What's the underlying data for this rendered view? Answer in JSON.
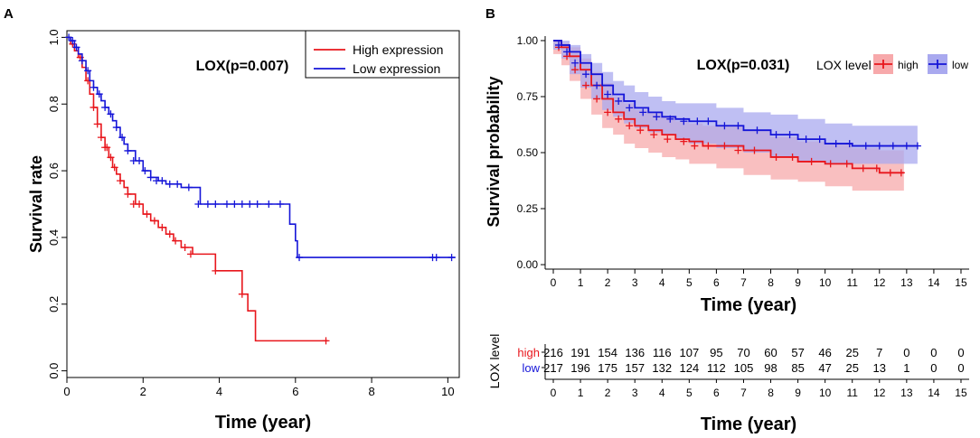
{
  "panels": {
    "a": {
      "letter": "A"
    },
    "b": {
      "letter": "B"
    }
  },
  "colors": {
    "high": "#e8161c",
    "low": "#1515d8",
    "high_band": "#f7a9ab",
    "low_band": "#a9a9ef",
    "axis": "#000000"
  },
  "chart_data": [
    {
      "panel": "A",
      "type": "line",
      "step": true,
      "xlabel": "Time (year)",
      "ylabel": "Survival rate",
      "xlim": [
        0,
        10.3
      ],
      "ylim": [
        -0.02,
        1.02
      ],
      "xticks": [
        "0",
        "2",
        "4",
        "6",
        "8",
        "10"
      ],
      "yticks": [
        "0.0",
        "0.2",
        "0.4",
        "0.6",
        "0.8",
        "1.0"
      ],
      "annotation": "LOX(p=0.007)",
      "legend": {
        "position": "top-right",
        "entries": [
          "High expression",
          "Low expression"
        ]
      },
      "series": [
        {
          "name": "High expression",
          "color": "high",
          "x": [
            0,
            0.1,
            0.2,
            0.3,
            0.4,
            0.5,
            0.6,
            0.7,
            0.8,
            0.9,
            1.0,
            1.1,
            1.2,
            1.3,
            1.4,
            1.5,
            1.6,
            1.8,
            2.0,
            2.2,
            2.4,
            2.6,
            2.8,
            3.0,
            3.3,
            3.6,
            3.9,
            4.6,
            4.75,
            4.95,
            6.85
          ],
          "y": [
            1.0,
            0.98,
            0.96,
            0.94,
            0.91,
            0.87,
            0.83,
            0.79,
            0.74,
            0.7,
            0.67,
            0.64,
            0.61,
            0.59,
            0.57,
            0.55,
            0.53,
            0.5,
            0.47,
            0.45,
            0.43,
            0.41,
            0.39,
            0.37,
            0.35,
            0.35,
            0.3,
            0.23,
            0.18,
            0.09,
            0.09
          ],
          "censor_x": [
            0.15,
            0.35,
            0.55,
            0.7,
            0.8,
            0.9,
            1.0,
            1.05,
            1.15,
            1.25,
            1.4,
            1.6,
            1.75,
            1.9,
            2.1,
            2.3,
            2.5,
            2.7,
            2.85,
            3.1,
            3.25,
            3.9,
            4.6,
            6.8
          ],
          "censor_y": [
            0.98,
            0.94,
            0.87,
            0.79,
            0.74,
            0.7,
            0.67,
            0.67,
            0.64,
            0.61,
            0.57,
            0.53,
            0.5,
            0.5,
            0.47,
            0.45,
            0.43,
            0.41,
            0.39,
            0.37,
            0.35,
            0.3,
            0.23,
            0.09
          ]
        },
        {
          "name": "Low expression",
          "color": "low",
          "x": [
            0,
            0.1,
            0.2,
            0.3,
            0.4,
            0.5,
            0.6,
            0.7,
            0.8,
            0.9,
            1.0,
            1.1,
            1.2,
            1.3,
            1.4,
            1.5,
            1.6,
            1.8,
            2.0,
            2.2,
            2.4,
            2.6,
            3.0,
            3.5,
            4.0,
            5.0,
            5.85,
            6.0,
            6.05,
            10.2
          ],
          "y": [
            1.0,
            0.99,
            0.97,
            0.95,
            0.93,
            0.9,
            0.87,
            0.85,
            0.83,
            0.81,
            0.79,
            0.77,
            0.75,
            0.73,
            0.7,
            0.68,
            0.66,
            0.63,
            0.6,
            0.58,
            0.57,
            0.56,
            0.55,
            0.5,
            0.5,
            0.5,
            0.44,
            0.39,
            0.34,
            0.34
          ],
          "censor_x": [
            0.05,
            0.15,
            0.25,
            0.4,
            0.55,
            0.7,
            0.85,
            1.0,
            1.15,
            1.3,
            1.45,
            1.6,
            1.75,
            1.9,
            2.05,
            2.2,
            2.35,
            2.5,
            2.7,
            2.9,
            3.2,
            3.45,
            3.7,
            3.9,
            4.2,
            4.4,
            4.6,
            4.8,
            5.0,
            5.3,
            5.6,
            6.1,
            9.6,
            9.7,
            10.1
          ],
          "censor_y": [
            1.0,
            0.99,
            0.97,
            0.93,
            0.9,
            0.85,
            0.83,
            0.79,
            0.77,
            0.73,
            0.7,
            0.66,
            0.63,
            0.63,
            0.6,
            0.58,
            0.57,
            0.57,
            0.56,
            0.56,
            0.55,
            0.5,
            0.5,
            0.5,
            0.5,
            0.5,
            0.5,
            0.5,
            0.5,
            0.5,
            0.5,
            0.34,
            0.34,
            0.34,
            0.34
          ]
        }
      ]
    },
    {
      "panel": "B",
      "type": "line",
      "step": true,
      "xlabel": "Time (year)",
      "ylabel": "Survival probability",
      "xlim": [
        -0.3,
        15.3
      ],
      "ylim": [
        -0.02,
        1.02
      ],
      "xticks": [
        "0",
        "1",
        "2",
        "3",
        "4",
        "5",
        "6",
        "7",
        "8",
        "9",
        "10",
        "11",
        "12",
        "13",
        "14",
        "15"
      ],
      "yticks": [
        "0.00",
        "0.25",
        "0.50",
        "0.75",
        "1.00"
      ],
      "annotation": "LOX(p=0.031)",
      "legend": {
        "position": "top-right",
        "title": "LOX level",
        "entries": [
          "high",
          "low"
        ]
      },
      "series": [
        {
          "name": "high",
          "color": "high",
          "band": "high_band",
          "x": [
            0,
            0.3,
            0.6,
            1.0,
            1.4,
            1.8,
            2.2,
            2.6,
            3.0,
            3.5,
            4.0,
            4.5,
            5.0,
            5.5,
            6.0,
            7.0,
            8.0,
            9.0,
            10.0,
            11.0,
            12.0,
            12.9
          ],
          "y": [
            1.0,
            0.97,
            0.93,
            0.87,
            0.8,
            0.74,
            0.68,
            0.65,
            0.62,
            0.6,
            0.58,
            0.56,
            0.55,
            0.53,
            0.53,
            0.51,
            0.48,
            0.46,
            0.45,
            0.43,
            0.41,
            0.41
          ],
          "lower": [
            1.0,
            0.94,
            0.89,
            0.82,
            0.74,
            0.67,
            0.61,
            0.58,
            0.54,
            0.52,
            0.5,
            0.48,
            0.47,
            0.45,
            0.45,
            0.43,
            0.4,
            0.38,
            0.37,
            0.35,
            0.33,
            0.33
          ],
          "upper": [
            1.0,
            0.99,
            0.97,
            0.92,
            0.86,
            0.81,
            0.75,
            0.72,
            0.69,
            0.68,
            0.66,
            0.64,
            0.63,
            0.62,
            0.62,
            0.6,
            0.57,
            0.55,
            0.54,
            0.52,
            0.51,
            0.51
          ],
          "censor_x": [
            0.2,
            0.5,
            0.8,
            1.2,
            1.6,
            2.0,
            2.4,
            2.8,
            3.2,
            3.7,
            4.2,
            4.8,
            5.2,
            5.7,
            6.3,
            6.8,
            7.4,
            8.2,
            8.8,
            9.5,
            10.2,
            10.8,
            11.4,
            11.9,
            12.4,
            12.8
          ],
          "censor_y": [
            0.97,
            0.93,
            0.87,
            0.8,
            0.74,
            0.68,
            0.65,
            0.62,
            0.6,
            0.58,
            0.56,
            0.55,
            0.53,
            0.53,
            0.53,
            0.51,
            0.51,
            0.48,
            0.48,
            0.46,
            0.45,
            0.45,
            0.43,
            0.43,
            0.41,
            0.41
          ]
        },
        {
          "name": "low",
          "color": "low",
          "band": "low_band",
          "x": [
            0,
            0.3,
            0.6,
            1.0,
            1.4,
            1.8,
            2.2,
            2.6,
            3.0,
            3.5,
            4.0,
            4.5,
            5.0,
            6.0,
            7.0,
            8.0,
            9.0,
            10.0,
            11.0,
            12.0,
            13.0,
            13.4
          ],
          "y": [
            1.0,
            0.98,
            0.95,
            0.9,
            0.85,
            0.8,
            0.76,
            0.73,
            0.7,
            0.68,
            0.66,
            0.65,
            0.64,
            0.62,
            0.6,
            0.58,
            0.56,
            0.54,
            0.53,
            0.53,
            0.53,
            0.53
          ],
          "lower": [
            1.0,
            0.96,
            0.92,
            0.85,
            0.79,
            0.74,
            0.69,
            0.66,
            0.63,
            0.61,
            0.59,
            0.58,
            0.56,
            0.54,
            0.52,
            0.5,
            0.48,
            0.46,
            0.45,
            0.45,
            0.45,
            0.45
          ],
          "upper": [
            1.0,
            1.0,
            0.98,
            0.94,
            0.9,
            0.86,
            0.82,
            0.8,
            0.77,
            0.75,
            0.73,
            0.72,
            0.72,
            0.7,
            0.68,
            0.67,
            0.65,
            0.63,
            0.62,
            0.62,
            0.62,
            0.62
          ],
          "censor_x": [
            0.2,
            0.5,
            0.8,
            1.2,
            1.6,
            2.0,
            2.4,
            2.8,
            3.3,
            3.8,
            4.3,
            4.8,
            5.3,
            5.7,
            6.3,
            6.8,
            7.5,
            8.2,
            8.7,
            9.3,
            9.8,
            10.4,
            10.9,
            11.5,
            12.0,
            12.5,
            13.0,
            13.4
          ],
          "censor_y": [
            0.98,
            0.95,
            0.9,
            0.85,
            0.8,
            0.76,
            0.73,
            0.7,
            0.68,
            0.66,
            0.65,
            0.64,
            0.64,
            0.64,
            0.62,
            0.62,
            0.6,
            0.58,
            0.58,
            0.56,
            0.56,
            0.54,
            0.54,
            0.53,
            0.53,
            0.53,
            0.53,
            0.53
          ]
        }
      ]
    },
    {
      "panel": "B-risk-table",
      "type": "table",
      "ylabel": "LOX level",
      "xlabel": "Time (year)",
      "xlim": [
        -0.3,
        15.3
      ],
      "xticks": [
        "0",
        "1",
        "2",
        "3",
        "4",
        "5",
        "6",
        "7",
        "8",
        "9",
        "10",
        "11",
        "12",
        "13",
        "14",
        "15"
      ],
      "rows": [
        {
          "name": "high",
          "color": "high",
          "values": [
            "216",
            "191",
            "154",
            "136",
            "116",
            "107",
            "95",
            "70",
            "60",
            "57",
            "46",
            "25",
            "7",
            "0",
            "0",
            "0"
          ]
        },
        {
          "name": "low",
          "color": "low",
          "values": [
            "217",
            "196",
            "175",
            "157",
            "132",
            "124",
            "112",
            "105",
            "98",
            "85",
            "47",
            "25",
            "13",
            "1",
            "0",
            "0"
          ]
        }
      ]
    }
  ]
}
